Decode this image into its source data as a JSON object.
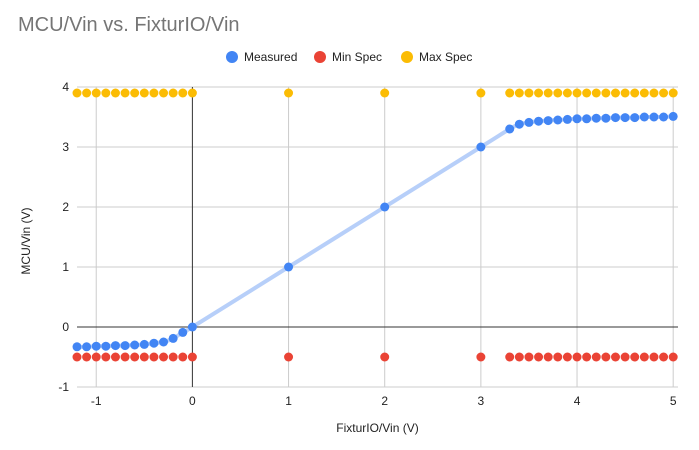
{
  "chart_data": {
    "type": "scatter",
    "title": "MCU/Vin vs. FixturIO/Vin",
    "xlabel": "FixturIO/Vin (V)",
    "ylabel": "MCU/Vin (V)",
    "xlim": [
      -1.2,
      5.05
    ],
    "ylim": [
      -1,
      4
    ],
    "x_ticks": [
      -1,
      0,
      1,
      2,
      3,
      4,
      5
    ],
    "y_ticks": [
      -1,
      0,
      1,
      2,
      3,
      4
    ],
    "grid": true,
    "legend_position": "top-center",
    "series": [
      {
        "name": "Measured",
        "color": "#4285f4",
        "trendline": true,
        "trendline_color": "#b7cff9",
        "x": [
          -1.2,
          -1.1,
          -1.0,
          -0.9,
          -0.8,
          -0.7,
          -0.6,
          -0.5,
          -0.4,
          -0.3,
          -0.2,
          -0.1,
          0,
          1,
          2,
          3,
          3.3,
          3.4,
          3.5,
          3.6,
          3.7,
          3.8,
          3.9,
          4.0,
          4.1,
          4.2,
          4.3,
          4.4,
          4.5,
          4.6,
          4.7,
          4.8,
          4.9,
          5.0
        ],
        "y": [
          -0.33,
          -0.33,
          -0.32,
          -0.32,
          -0.31,
          -0.31,
          -0.3,
          -0.29,
          -0.27,
          -0.25,
          -0.19,
          -0.09,
          0,
          1,
          2,
          3,
          3.3,
          3.38,
          3.41,
          3.43,
          3.44,
          3.45,
          3.46,
          3.47,
          3.47,
          3.48,
          3.48,
          3.49,
          3.49,
          3.49,
          3.5,
          3.5,
          3.5,
          3.51
        ]
      },
      {
        "name": "Min Spec",
        "color": "#ea4335",
        "x": [
          -1.2,
          -1.1,
          -1.0,
          -0.9,
          -0.8,
          -0.7,
          -0.6,
          -0.5,
          -0.4,
          -0.3,
          -0.2,
          -0.1,
          0,
          1,
          2,
          3,
          3.3,
          3.4,
          3.5,
          3.6,
          3.7,
          3.8,
          3.9,
          4.0,
          4.1,
          4.2,
          4.3,
          4.4,
          4.5,
          4.6,
          4.7,
          4.8,
          4.9,
          5.0
        ],
        "y": [
          -0.5,
          -0.5,
          -0.5,
          -0.5,
          -0.5,
          -0.5,
          -0.5,
          -0.5,
          -0.5,
          -0.5,
          -0.5,
          -0.5,
          -0.5,
          -0.5,
          -0.5,
          -0.5,
          -0.5,
          -0.5,
          -0.5,
          -0.5,
          -0.5,
          -0.5,
          -0.5,
          -0.5,
          -0.5,
          -0.5,
          -0.5,
          -0.5,
          -0.5,
          -0.5,
          -0.5,
          -0.5,
          -0.5,
          -0.5
        ]
      },
      {
        "name": "Max Spec",
        "color": "#fbbc04",
        "x": [
          -1.2,
          -1.1,
          -1.0,
          -0.9,
          -0.8,
          -0.7,
          -0.6,
          -0.5,
          -0.4,
          -0.3,
          -0.2,
          -0.1,
          0,
          1,
          2,
          3,
          3.3,
          3.4,
          3.5,
          3.6,
          3.7,
          3.8,
          3.9,
          4.0,
          4.1,
          4.2,
          4.3,
          4.4,
          4.5,
          4.6,
          4.7,
          4.8,
          4.9,
          5.0
        ],
        "y": [
          3.9,
          3.9,
          3.9,
          3.9,
          3.9,
          3.9,
          3.9,
          3.9,
          3.9,
          3.9,
          3.9,
          3.9,
          3.9,
          3.9,
          3.9,
          3.9,
          3.9,
          3.9,
          3.9,
          3.9,
          3.9,
          3.9,
          3.9,
          3.9,
          3.9,
          3.9,
          3.9,
          3.9,
          3.9,
          3.9,
          3.9,
          3.9,
          3.9,
          3.9
        ]
      }
    ]
  }
}
